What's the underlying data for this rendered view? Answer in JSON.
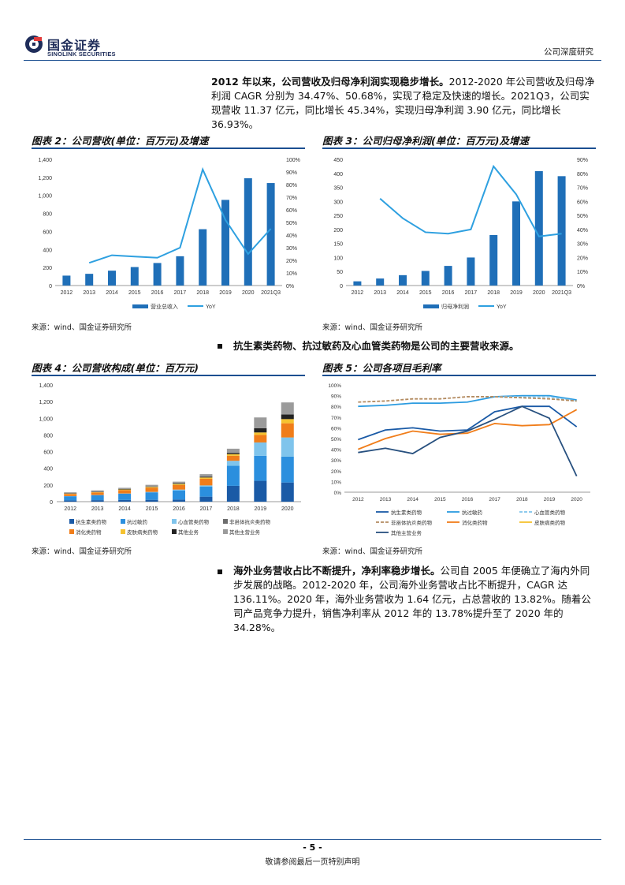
{
  "header": {
    "logo_cn": "国金证券",
    "logo_en": "SINOLINK SECURITIES",
    "right_label": "公司深度研究"
  },
  "intro": {
    "bold": "2012 年以来，公司营收及归母净利润实现稳步增长。",
    "text": "2012-2020 年公司营收及归母净利润 CAGR 分别为 34.47%、50.68%，实现了稳定及快速的增长。2021Q3，公司实现营收 11.37 亿元，同比增长 45.34%，实现归母净利润 3.90 亿元，同比增长 36.93%。"
  },
  "fig2": {
    "title": "图表 2：公司营收(单位：百万元)及增速",
    "source": "来源：wind、国金证券研究所"
  },
  "fig3": {
    "title": "图表 3：公司归母净利润(单位：百万元)及增速",
    "source": "来源：wind、国金证券研究所"
  },
  "bullet1": "抗生素类药物、抗过敏药及心血管类药物是公司的主要营收来源。",
  "fig4": {
    "title": "图表 4：公司营收构成(单位：百万元)",
    "source": "来源：wind、国金证券研究所"
  },
  "fig5": {
    "title": "图表 5：公司各项目毛利率",
    "source": "来源：wind、国金证券研究所"
  },
  "bullet2": {
    "bold": "海外业务营收占比不断提升，净利率稳步增长。",
    "text": "公司自 2005 年便确立了海内外同步发展的战略。2012-2020 年，公司海外业务营收占比不断提升，CAGR 达 136.11%。2020 年，海外业务营收为 1.64 亿元，占总营收的 13.82%。随着公司产品竞争力提升，销售净利率从 2012 年的 13.78%提升至了 2020 年的 34.28%。"
  },
  "footer": {
    "page": "- 5 -",
    "note": "敬请参阅最后一页特别声明"
  },
  "colors": {
    "brand": "#1b4f91",
    "bar": "#1f6fb8",
    "line": "#2ea0e0"
  },
  "chart_data": [
    {
      "id": "fig2",
      "type": "bar",
      "categories": [
        "2012",
        "2013",
        "2014",
        "2015",
        "2016",
        "2017",
        "2018",
        "2019",
        "2020",
        "2021Q3"
      ],
      "series": [
        {
          "name": "营业总收入",
          "type": "bar",
          "axis": "left",
          "values": [
            110,
            130,
            165,
            205,
            250,
            325,
            625,
            950,
            1190,
            1137
          ]
        },
        {
          "name": "YoY",
          "type": "line",
          "axis": "right",
          "values": [
            null,
            18,
            24,
            23,
            22,
            30,
            92,
            52,
            25,
            45
          ]
        }
      ],
      "ylim": [
        0,
        1400
      ],
      "yticks": [
        0,
        200,
        400,
        600,
        800,
        1000,
        1200,
        1400
      ],
      "ylim_right": [
        0,
        100
      ],
      "yticks_right": [
        "0%",
        "10%",
        "20%",
        "30%",
        "40%",
        "50%",
        "60%",
        "70%",
        "80%",
        "90%",
        "100%"
      ],
      "legend": "bottom"
    },
    {
      "id": "fig3",
      "type": "bar",
      "categories": [
        "2012",
        "2013",
        "2014",
        "2015",
        "2016",
        "2017",
        "2018",
        "2019",
        "2020",
        "2021Q3"
      ],
      "series": [
        {
          "name": "归母净利润",
          "type": "bar",
          "axis": "left",
          "values": [
            15,
            25,
            37,
            52,
            70,
            100,
            180,
            300,
            408,
            390
          ]
        },
        {
          "name": "YoY",
          "type": "line",
          "axis": "right",
          "values": [
            null,
            62,
            48,
            38,
            37,
            40,
            85,
            65,
            35,
            37
          ]
        }
      ],
      "ylim": [
        0,
        450
      ],
      "yticks": [
        0,
        50,
        100,
        150,
        200,
        250,
        300,
        350,
        400,
        450
      ],
      "ylim_right": [
        0,
        90
      ],
      "yticks_right": [
        "0%",
        "10%",
        "20%",
        "30%",
        "40%",
        "50%",
        "60%",
        "70%",
        "80%",
        "90%"
      ],
      "legend": "bottom"
    },
    {
      "id": "fig4",
      "type": "bar",
      "stacked": true,
      "categories": [
        "2012",
        "2013",
        "2014",
        "2015",
        "2016",
        "2017",
        "2018",
        "2019",
        "2020"
      ],
      "series": [
        {
          "name": "抗生素类药物",
          "color": "#1a5aa6",
          "values": [
            15,
            18,
            20,
            22,
            25,
            60,
            190,
            250,
            230
          ]
        },
        {
          "name": "抗过敏药",
          "color": "#2b8fde",
          "values": [
            50,
            60,
            75,
            90,
            110,
            120,
            240,
            300,
            310
          ]
        },
        {
          "name": "心血管类药物",
          "color": "#7fc4ec",
          "values": [
            2,
            2,
            3,
            5,
            10,
            15,
            60,
            160,
            230
          ]
        },
        {
          "name": "非甾体抗炎类药物",
          "color": "#6d6d6d",
          "values": [
            0,
            0,
            0,
            0,
            0,
            0,
            0,
            0,
            0
          ]
        },
        {
          "name": "消化类药物",
          "color": "#f07d1a",
          "values": [
            25,
            30,
            40,
            50,
            55,
            80,
            60,
            90,
            170
          ]
        },
        {
          "name": "皮肤病类药物",
          "color": "#f5c230",
          "values": [
            5,
            5,
            8,
            10,
            12,
            15,
            20,
            30,
            50
          ]
        },
        {
          "name": "其他业务",
          "color": "#222222",
          "values": [
            5,
            5,
            5,
            5,
            8,
            10,
            15,
            50,
            55
          ]
        },
        {
          "name": "其他主营业务",
          "color": "#9b9b9b",
          "values": [
            10,
            15,
            15,
            20,
            20,
            30,
            50,
            130,
            145
          ]
        }
      ],
      "ylim": [
        0,
        1400
      ],
      "yticks": [
        0,
        200,
        400,
        600,
        800,
        1000,
        1200,
        1400
      ],
      "legend": "bottom"
    },
    {
      "id": "fig5",
      "type": "line",
      "categories": [
        "2012",
        "2013",
        "2014",
        "2015",
        "2016",
        "2017",
        "2018",
        "2019",
        "2020"
      ],
      "series": [
        {
          "name": "抗生素类药物",
          "color": "#1a5aa6",
          "dash": false,
          "values": [
            49,
            58,
            60,
            57,
            58,
            75,
            80,
            80,
            61
          ]
        },
        {
          "name": "抗过敏药",
          "color": "#2b9be0",
          "dash": false,
          "values": [
            80,
            81,
            83,
            83,
            84,
            89,
            90,
            90,
            86
          ]
        },
        {
          "name": "心血管类药物",
          "color": "#7fc4ec",
          "dash": true,
          "values": [
            null,
            null,
            null,
            null,
            null,
            89,
            89,
            89,
            85
          ]
        },
        {
          "name": "非甾体抗炎类药物",
          "color": "#b38b60",
          "dash": true,
          "values": [
            84,
            85,
            87,
            87,
            89,
            89,
            88,
            87,
            85
          ]
        },
        {
          "name": "消化类药物",
          "color": "#f07d1a",
          "dash": false,
          "values": [
            40,
            50,
            57,
            54,
            55,
            64,
            62,
            63,
            77
          ]
        },
        {
          "name": "皮肤病类药物",
          "color": "#f5c230",
          "dash": false,
          "values": [
            null,
            null,
            null,
            null,
            null,
            null,
            null,
            null,
            null
          ]
        },
        {
          "name": "其他主营业务",
          "color": "#27507f",
          "dash": false,
          "values": [
            37,
            41,
            36,
            51,
            57,
            68,
            80,
            69,
            15
          ]
        }
      ],
      "ylim": [
        0,
        100
      ],
      "yticks": [
        "0%",
        "10%",
        "20%",
        "30%",
        "40%",
        "50%",
        "60%",
        "70%",
        "80%",
        "90%",
        "100%"
      ],
      "legend": "bottom"
    }
  ]
}
